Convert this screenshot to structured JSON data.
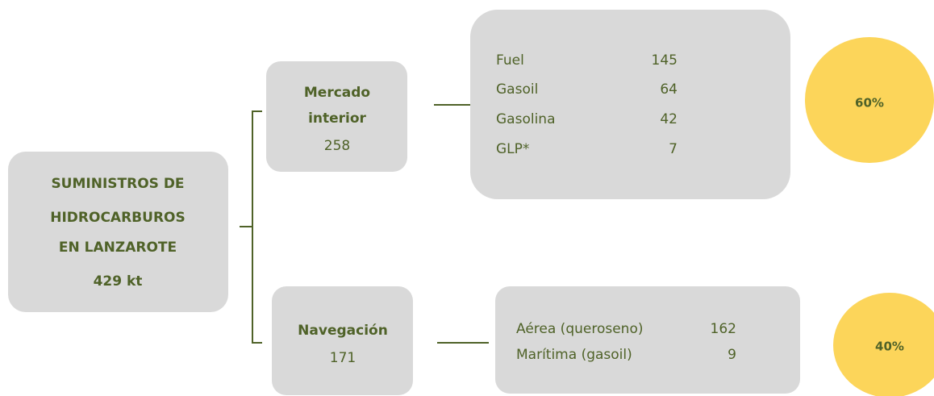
{
  "root": {
    "lines": [
      "SUMINISTROS DE",
      "HIDROCARBUROS",
      "EN LANZAROTE",
      "429 kt"
    ]
  },
  "branches": [
    {
      "name_lines": [
        "Mercado",
        "interior"
      ],
      "value": "258",
      "items": [
        {
          "label": "Fuel",
          "value": "145"
        },
        {
          "label": "Gasoil",
          "value": "64"
        },
        {
          "label": "Gasolina",
          "value": "42"
        },
        {
          "label": "GLP*",
          "value": "7"
        }
      ],
      "share": "60%"
    },
    {
      "name_lines": [
        "Navegación"
      ],
      "value": "171",
      "items": [
        {
          "label": "Aérea (queroseno)",
          "value": "162"
        },
        {
          "label": "Marítima (gasoil)",
          "value": "9"
        }
      ],
      "share": "40%"
    }
  ]
}
